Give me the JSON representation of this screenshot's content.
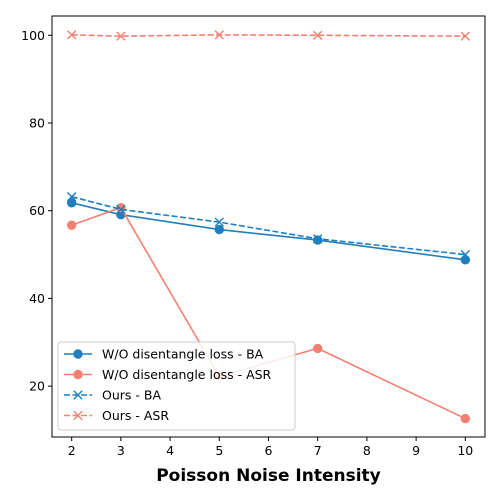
{
  "chart_data": {
    "type": "line",
    "title": "",
    "xlabel": "Poisson Noise Intensity",
    "ylabel": "",
    "xlim": [
      1.6,
      10.4
    ],
    "ylim": [
      8.4,
      104.4
    ],
    "xticks": [
      "2",
      "3",
      "4",
      "5",
      "6",
      "7",
      "8",
      "9",
      "10"
    ],
    "yticks": [
      "20",
      "40",
      "60",
      "80",
      "100"
    ],
    "grid": false,
    "legend_position": "lower-left",
    "series": [
      {
        "name": "W/O disentangle loss - BA",
        "x": [
          2,
          3,
          5,
          7,
          10
        ],
        "y": [
          61.8,
          59.1,
          55.7,
          53.3,
          48.8
        ],
        "color": "#1f7fbf",
        "line_style": "solid",
        "marker": "circle"
      },
      {
        "name": "W/O disentangle loss - ASR",
        "x": [
          2,
          3,
          5,
          7,
          10
        ],
        "y": [
          56.7,
          60.7,
          22.2,
          28.6,
          12.6
        ],
        "color": "#f28070",
        "line_style": "solid",
        "marker": "circle"
      },
      {
        "name": "Ours - BA",
        "x": [
          2,
          3,
          5,
          7,
          10
        ],
        "y": [
          63.2,
          60.3,
          57.4,
          53.6,
          50.0
        ],
        "color": "#1f7fbf",
        "line_style": "dashed",
        "marker": "x"
      },
      {
        "name": "Ours - ASR",
        "x": [
          2,
          3,
          5,
          7,
          10
        ],
        "y": [
          100.1,
          99.8,
          100.1,
          100.0,
          99.8
        ],
        "color": "#f28070",
        "line_style": "dashed",
        "marker": "x"
      }
    ]
  }
}
